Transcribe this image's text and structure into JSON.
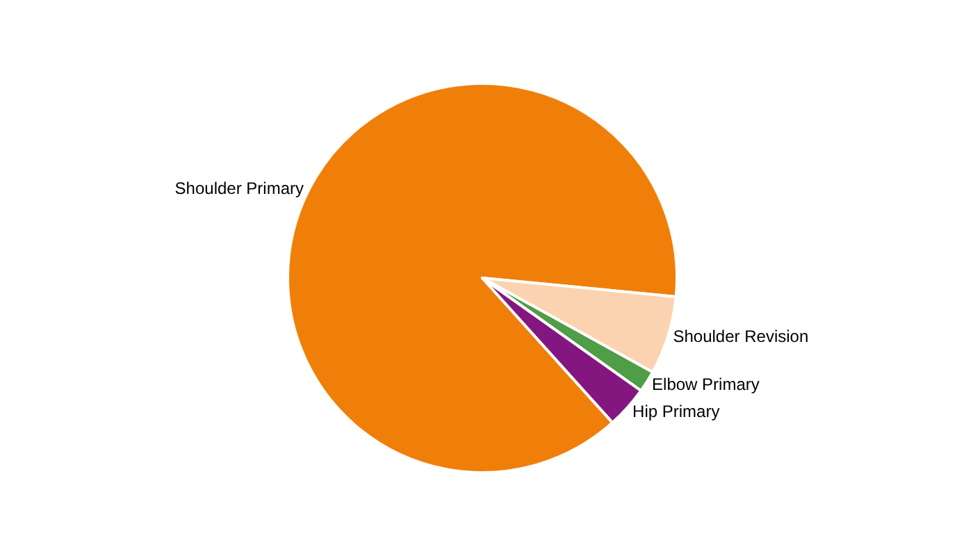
{
  "chart_data": {
    "type": "pie",
    "categories": [
      "Shoulder Primary",
      "Shoulder Revision",
      "Elbow Primary",
      "Hip Primary"
    ],
    "values": [
      88.2,
      6.5,
      1.8,
      3.5
    ],
    "colors": [
      "#f07f09",
      "#fcd3b0",
      "#4f9d46",
      "#83177f"
    ],
    "legend": false
  }
}
